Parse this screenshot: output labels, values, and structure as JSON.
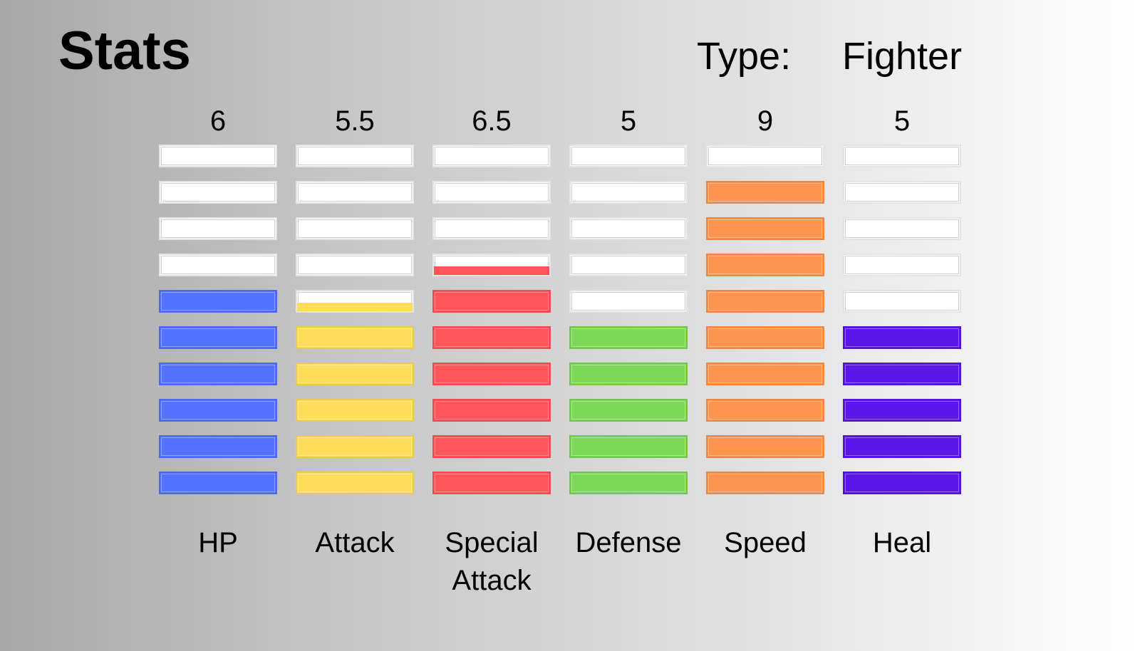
{
  "header": {
    "title": "Stats",
    "type_label": "Type:",
    "type_value": "Fighter"
  },
  "chart_data": {
    "type": "bar",
    "max_segments": 10,
    "categories": [
      "HP",
      "Attack",
      "Special Attack",
      "Defense",
      "Speed",
      "Heal"
    ],
    "values": [
      6,
      5.5,
      6.5,
      5,
      9,
      5
    ],
    "value_labels": [
      "6",
      "5.5",
      "6.5",
      "5",
      "9",
      "5"
    ],
    "colors": [
      "#5173ff",
      "#ffdc5a",
      "#ff5458",
      "#7dd858",
      "#ff944e",
      "#5b17e8"
    ],
    "empty_color": "#ffffff"
  }
}
